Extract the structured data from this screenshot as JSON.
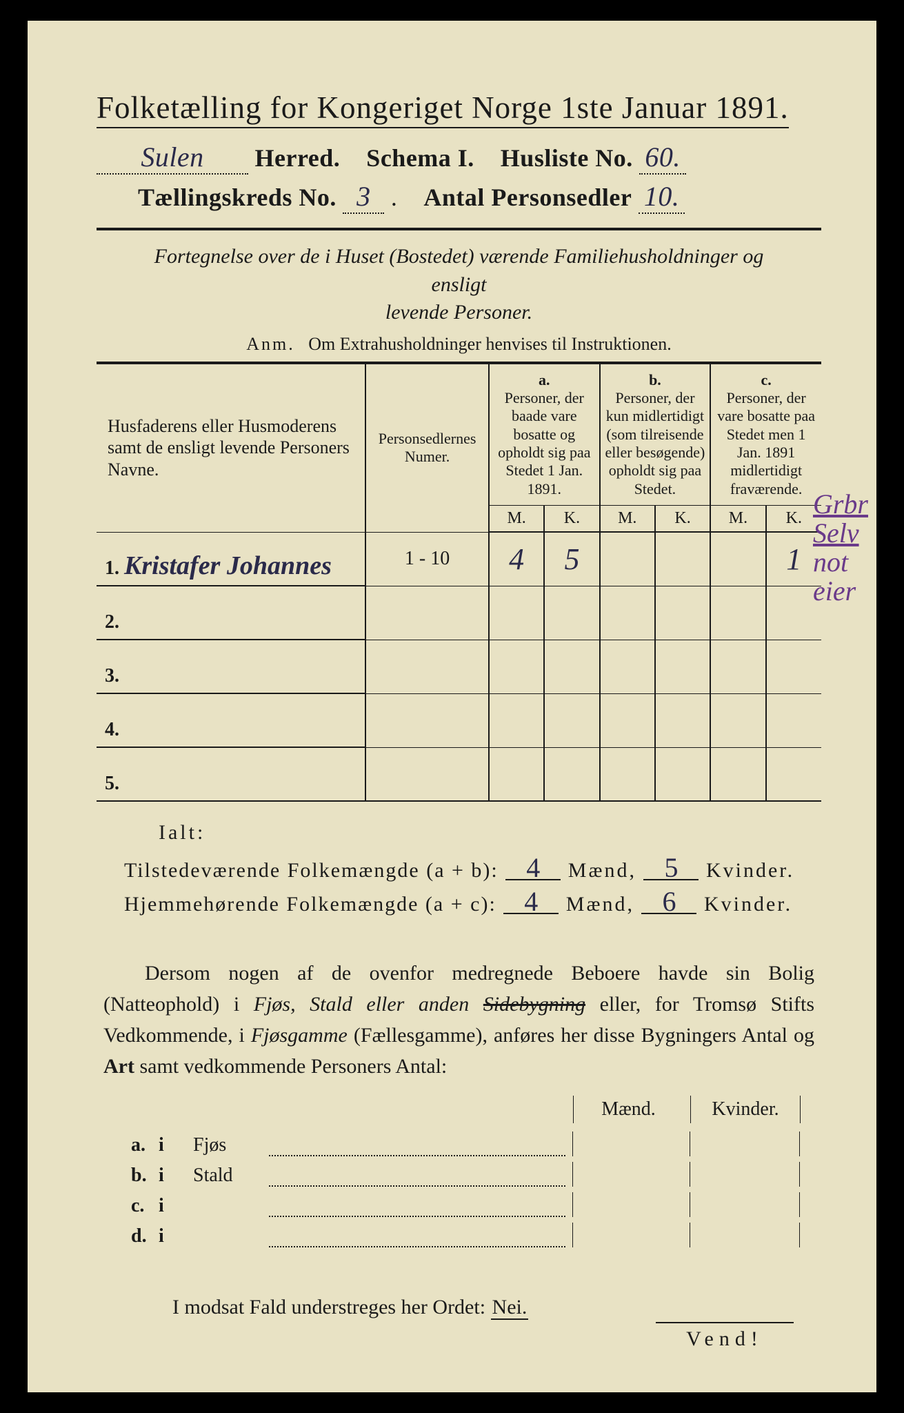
{
  "colors": {
    "page_bg": "#e8e2c4",
    "frame_bg": "#000000",
    "ink": "#1a1a1a",
    "pen": "#2a2a4a",
    "pencil_margin": "#6a3a8a"
  },
  "typography": {
    "title_fontsize_pt": 34,
    "body_fontsize_pt": 22,
    "table_header_fontsize_pt": 16,
    "handwriting_family": "cursive"
  },
  "header": {
    "title": "Folketælling for Kongeriget Norge 1ste Januar 1891.",
    "herred_value": "Sulen",
    "herred_label": "Herred.",
    "schema_label": "Schema I.",
    "husliste_label": "Husliste No.",
    "husliste_value": "60.",
    "kreds_label": "Tællingskreds No.",
    "kreds_value": "3",
    "antal_label": "Antal Personsedler",
    "antal_value": "10."
  },
  "fortegnelse": {
    "line1": "Fortegnelse over de i Huset (Bostedet) værende Familiehusholdninger og ensligt",
    "line2": "levende Personer.",
    "anm_label": "Anm.",
    "anm_text": "Om Extrahusholdninger henvises til Instruktionen."
  },
  "table": {
    "columns": {
      "name": "Husfaderens eller Husmoderens samt de ensligt levende Personers Navne.",
      "num": "Personsedlernes Numer.",
      "a_label": "a.",
      "a": "Personer, der baade vare bosatte og opholdt sig paa Stedet 1 Jan. 1891.",
      "b_label": "b.",
      "b": "Personer, der kun midlertidigt (som tilreisende eller besøgende) opholdt sig paa Stedet.",
      "c_label": "c.",
      "c": "Personer, der vare bosatte paa Stedet men 1 Jan. 1891 midlertidigt fraværende.",
      "M": "M.",
      "K": "K."
    },
    "rows": [
      {
        "n": "1.",
        "name": "Kristafer Johannes",
        "num": "1 - 10",
        "aM": "4",
        "aK": "5",
        "bM": "",
        "bK": "",
        "cM": "",
        "cK": "1"
      },
      {
        "n": "2.",
        "name": "",
        "num": "",
        "aM": "",
        "aK": "",
        "bM": "",
        "bK": "",
        "cM": "",
        "cK": ""
      },
      {
        "n": "3.",
        "name": "",
        "num": "",
        "aM": "",
        "aK": "",
        "bM": "",
        "bK": "",
        "cM": "",
        "cK": ""
      },
      {
        "n": "4.",
        "name": "",
        "num": "",
        "aM": "",
        "aK": "",
        "bM": "",
        "bK": "",
        "cM": "",
        "cK": ""
      },
      {
        "n": "5.",
        "name": "",
        "num": "",
        "aM": "",
        "aK": "",
        "bM": "",
        "bK": "",
        "cM": "",
        "cK": ""
      }
    ],
    "margin_note": [
      "Grbr",
      "Selv",
      "not",
      "eier"
    ]
  },
  "summary": {
    "ialt": "Ialt:",
    "tilstede_label": "Tilstedeværende Folkemængde (a + b):",
    "hjemme_label": "Hjemmehørende Folkemængde (a + c):",
    "maend": "Mænd,",
    "kvinder": "Kvinder.",
    "tilstede_m": "4",
    "tilstede_k": "5",
    "hjemme_m": "4",
    "hjemme_k": "6"
  },
  "para": {
    "text1": "Dersom nogen af de ovenfor medregnede Beboere havde sin Bolig (Natteophold) i ",
    "fjos": "Fjøs, Stald eller anden ",
    "sidebygning": "Sidebygning",
    "text2": " eller, for Tromsø Stifts Vedkommende, i ",
    "fjosgamme": "Fjøsgamme",
    "text3": " (Fællesgamme), anføres her disse Bygningers Antal og ",
    "art": "Art",
    "text4": " samt vedkommende Personers Antal:"
  },
  "mk": {
    "m": "Mænd.",
    "k": "Kvinder."
  },
  "abcd": [
    {
      "l": "a.",
      "i": "i",
      "what": "Fjøs"
    },
    {
      "l": "b.",
      "i": "i",
      "what": "Stald"
    },
    {
      "l": "c.",
      "i": "i",
      "what": ""
    },
    {
      "l": "d.",
      "i": "i",
      "what": ""
    }
  ],
  "modsat": {
    "text": "I modsat Fald understreges her Ordet:",
    "nei": "Nei."
  },
  "vend": "Vend!"
}
